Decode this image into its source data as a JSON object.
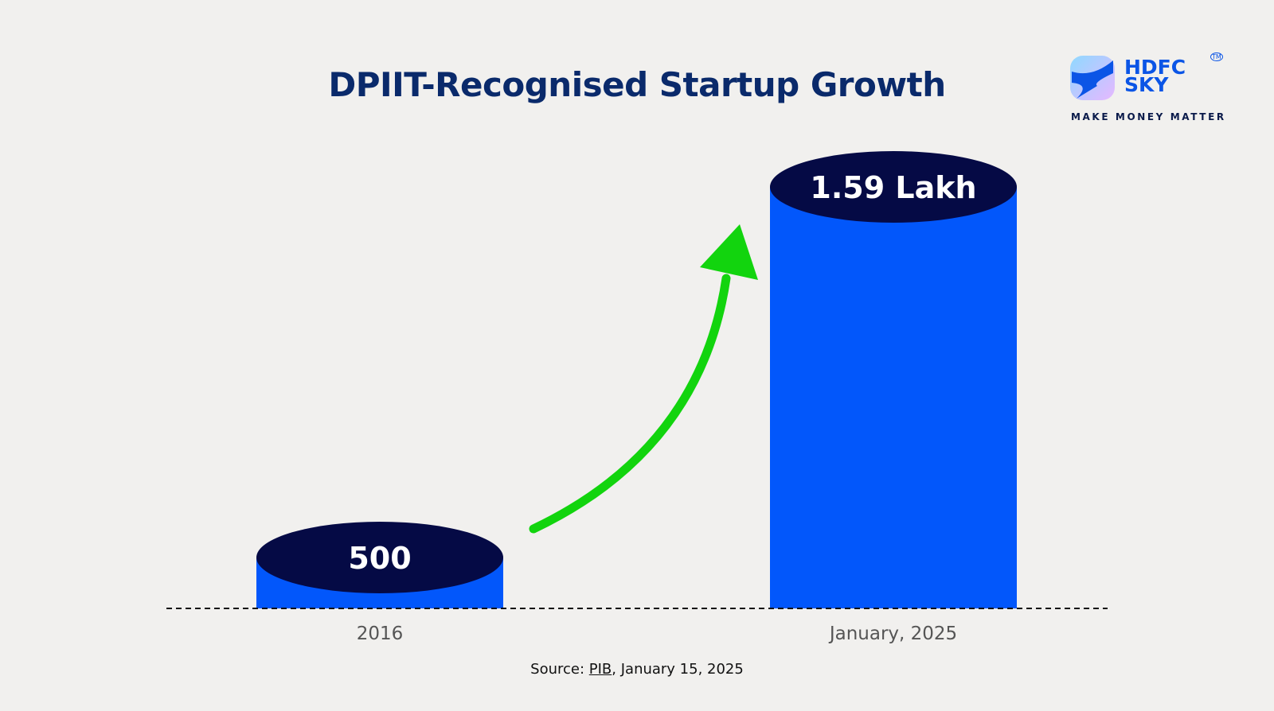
{
  "chart_data": {
    "type": "bar",
    "title": "DPIIT-Recognised Startup Growth",
    "categories": [
      "2016",
      "January, 2025"
    ],
    "values": [
      500,
      159000
    ],
    "data_labels": [
      "500",
      "1.59 Lakh"
    ],
    "xlabel": "",
    "ylabel": "",
    "grid": false,
    "colors": {
      "bar": "#0257fb",
      "cap": "#050a45",
      "arrow": "#12d40e",
      "title": "#0a2a6b"
    }
  },
  "source": {
    "prefix": "Source: ",
    "link": "PIB",
    "suffix": ", January 15, 2025"
  },
  "logo": {
    "line1": "HDFC",
    "line2": "SKY",
    "tagline": "MAKE MONEY MATTER",
    "tm": "TM"
  }
}
